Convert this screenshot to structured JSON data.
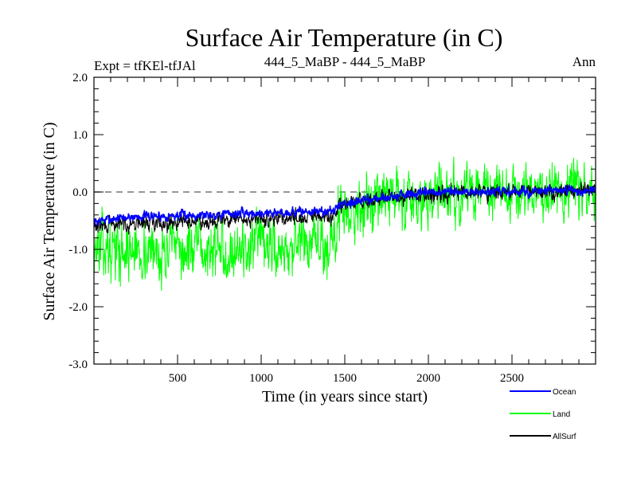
{
  "chart_data": {
    "type": "line",
    "title": "Surface Air Temperature (in C)",
    "subtitle_left": "Expt = tfKEl-tfJAl",
    "subtitle_center": "444_5_MaBP - 444_5_MaBP",
    "subtitle_right": "Ann",
    "xlabel": "Time (in years since start)",
    "ylabel": "Surface Air Temperature (in C)",
    "xlim": [
      0,
      3000
    ],
    "ylim": [
      -3.0,
      2.0
    ],
    "xticks": [
      500,
      1000,
      1500,
      2000,
      2500
    ],
    "xtick_labels": [
      "500",
      "1000",
      "1500",
      "2000",
      "2500"
    ],
    "yticks": [
      2.0,
      1.0,
      0.0,
      -1.0,
      -2.0,
      -3.0
    ],
    "ytick_labels": [
      "2.0",
      "1.0",
      "0.0",
      "-1.0",
      "-2.0",
      "-3.0"
    ],
    "reference_line": 0.0,
    "legend_position": "bottom-right",
    "series": [
      {
        "name": "Ocean",
        "color": "#0000ff",
        "x": [
          0,
          100,
          200,
          300,
          400,
          500,
          600,
          700,
          800,
          900,
          1000,
          1100,
          1200,
          1300,
          1400,
          1450,
          1460,
          1500,
          1600,
          1700,
          1800,
          1900,
          2000,
          2100,
          2200,
          2300,
          2400,
          2500,
          2600,
          2700,
          2800,
          2900,
          3000
        ],
        "y": [
          -0.52,
          -0.47,
          -0.44,
          -0.42,
          -0.42,
          -0.41,
          -0.4,
          -0.39,
          -0.38,
          -0.37,
          -0.37,
          -0.36,
          -0.35,
          -0.34,
          -0.34,
          -0.32,
          -0.22,
          -0.19,
          -0.15,
          -0.11,
          -0.07,
          -0.04,
          -0.02,
          0.0,
          0.0,
          0.0,
          0.0,
          0.0,
          0.0,
          0.01,
          0.02,
          0.02,
          0.02
        ],
        "noise": 0.06
      },
      {
        "name": "Land",
        "color": "#00ff00",
        "x": [
          0,
          100,
          200,
          300,
          400,
          500,
          600,
          700,
          800,
          900,
          1000,
          1100,
          1200,
          1300,
          1400,
          1450,
          1460,
          1500,
          1600,
          1700,
          1800,
          1900,
          2000,
          2100,
          2200,
          2300,
          2400,
          2500,
          2600,
          2700,
          2800,
          2900,
          3000
        ],
        "y": [
          -0.95,
          -1.0,
          -1.02,
          -1.04,
          -1.04,
          -1.03,
          -1.02,
          -1.01,
          -1.0,
          -0.99,
          -0.98,
          -0.97,
          -0.96,
          -0.95,
          -0.95,
          -0.92,
          -0.32,
          -0.3,
          -0.25,
          -0.18,
          -0.12,
          -0.07,
          -0.04,
          -0.02,
          -0.01,
          0.0,
          0.0,
          0.0,
          0.0,
          0.01,
          0.02,
          0.03,
          0.03
        ],
        "noise": 0.38
      },
      {
        "name": "AllSurf",
        "color": "#000000",
        "x": [
          0,
          100,
          200,
          300,
          400,
          500,
          600,
          700,
          800,
          900,
          1000,
          1100,
          1200,
          1300,
          1400,
          1450,
          1460,
          1500,
          1600,
          1700,
          1800,
          1900,
          2000,
          2100,
          2200,
          2300,
          2400,
          2500,
          2600,
          2700,
          2800,
          2900,
          3000
        ],
        "y": [
          -0.6,
          -0.58,
          -0.55,
          -0.54,
          -0.53,
          -0.52,
          -0.51,
          -0.5,
          -0.49,
          -0.48,
          -0.47,
          -0.46,
          -0.45,
          -0.44,
          -0.44,
          -0.42,
          -0.24,
          -0.21,
          -0.17,
          -0.13,
          -0.09,
          -0.06,
          -0.03,
          -0.01,
          -0.01,
          0.0,
          0.0,
          0.0,
          0.0,
          0.01,
          0.02,
          0.02,
          0.02
        ],
        "noise": 0.1
      }
    ]
  }
}
